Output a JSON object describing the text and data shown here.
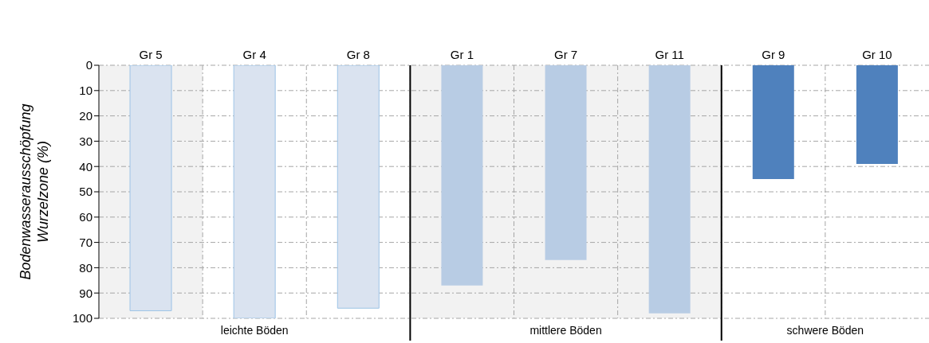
{
  "chart_data": {
    "type": "bar",
    "ylabel": "Bodenwasserausschöpfung\nWurzelzone (%)",
    "categories": [
      "Gr 5",
      "Gr 4",
      "Gr 8",
      "Gr 1",
      "Gr 7",
      "Gr 11",
      "Gr 9",
      "Gr 10"
    ],
    "values": [
      97,
      100,
      96,
      87,
      77,
      98,
      45,
      39
    ],
    "colors": [
      "#dae3f0",
      "#dae3f0",
      "#dae3f0",
      "#b8cce4",
      "#b8cce4",
      "#b8cce4",
      "#4f81bd",
      "#4f81bd"
    ],
    "ylim": [
      100,
      0
    ],
    "yticks": [
      0,
      10,
      20,
      30,
      40,
      50,
      60,
      70,
      80,
      90,
      100
    ],
    "grid": true,
    "bands": [
      {
        "axis": "x",
        "from": "Gr 5",
        "to": "Gr 5",
        "color": "#f2f2f2"
      },
      {
        "axis": "x",
        "from": "Gr 1",
        "to": "Gr 11",
        "color": "#f2f2f2"
      }
    ],
    "annotations": [
      "leichte Böden",
      "mittlere Böden",
      "schwere Böden"
    ]
  }
}
